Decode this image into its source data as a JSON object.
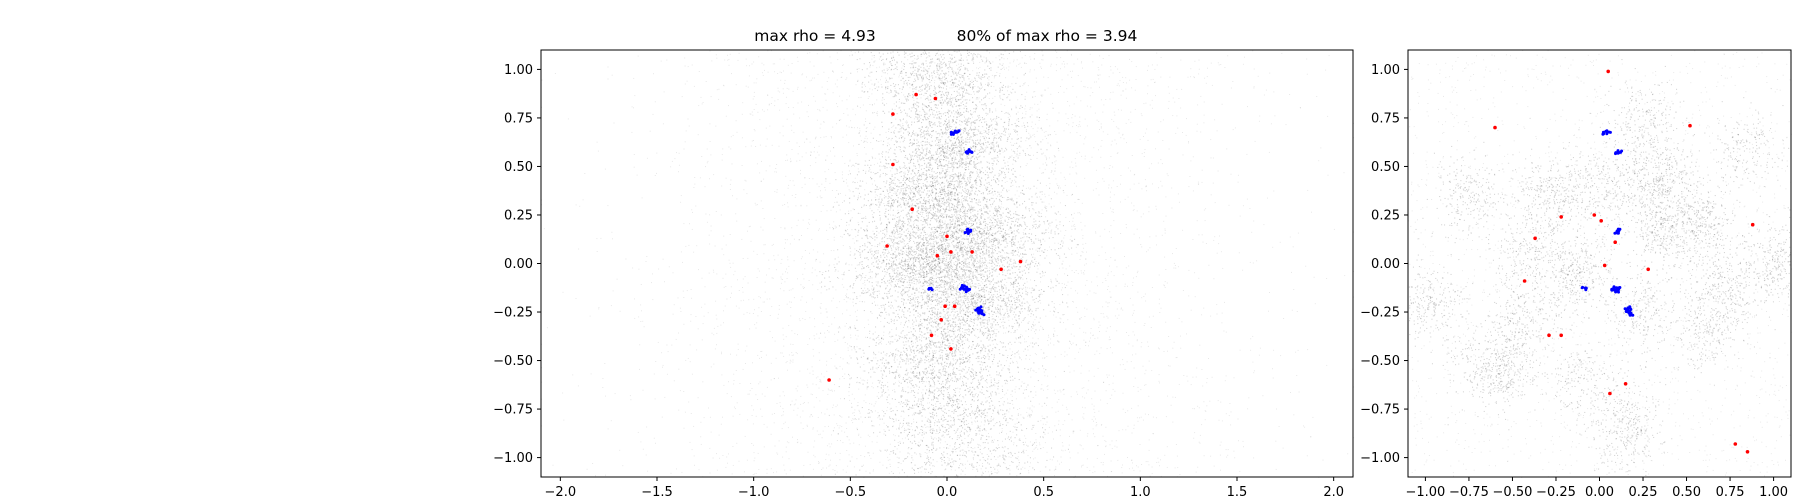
{
  "figure_title": {
    "left": "max rho = 4.93",
    "right": "80% of max rho = 3.94"
  },
  "chart_data": [
    {
      "type": "scatter",
      "title": "",
      "xlabel": "",
      "ylabel": "",
      "xlim": [
        -2.1,
        2.1
      ],
      "ylim": [
        -1.1,
        1.1
      ],
      "grid": false,
      "xticks": [
        -2.0,
        -1.5,
        -1.0,
        -0.5,
        0.0,
        0.5,
        1.0,
        1.5,
        2.0
      ],
      "xtick_labels": [
        "−2.0",
        "−1.5",
        "−1.0",
        "−0.5",
        "0.0",
        "0.5",
        "1.0",
        "1.5",
        "2.0"
      ],
      "yticks": [
        1.0,
        0.75,
        0.5,
        0.25,
        0.0,
        -0.25,
        -0.5,
        -0.75,
        -1.0
      ],
      "ytick_labels": [
        "1.00",
        "0.75",
        "0.50",
        "0.25",
        "0.00",
        "−0.25",
        "−0.50",
        "−0.75",
        "−1.00"
      ],
      "background_density": {
        "color": "#000000",
        "description_points": 0,
        "blobs": [
          {
            "x": -0.05,
            "y": 0.95,
            "sx": 0.18,
            "sy": 0.12,
            "w": 0.7
          },
          {
            "x": 0.05,
            "y": 0.62,
            "sx": 0.18,
            "sy": 0.12,
            "w": 1.0
          },
          {
            "x": -0.1,
            "y": 0.35,
            "sx": 0.18,
            "sy": 0.1,
            "w": 0.9
          },
          {
            "x": 0.1,
            "y": 0.15,
            "sx": 0.22,
            "sy": 0.12,
            "w": 1.2
          },
          {
            "x": -0.1,
            "y": 0.0,
            "sx": 0.2,
            "sy": 0.1,
            "w": 1.1
          },
          {
            "x": 0.1,
            "y": -0.2,
            "sx": 0.2,
            "sy": 0.1,
            "w": 1.0
          },
          {
            "x": -0.05,
            "y": -0.5,
            "sx": 0.2,
            "sy": 0.12,
            "w": 0.9
          },
          {
            "x": 0.05,
            "y": -0.85,
            "sx": 0.22,
            "sy": 0.15,
            "w": 0.7
          }
        ]
      },
      "series": [
        {
          "color": "#ff0000",
          "marker": "dot",
          "points": [
            [
              -0.16,
              0.87
            ],
            [
              -0.06,
              0.85
            ],
            [
              -0.28,
              0.77
            ],
            [
              -0.28,
              0.51
            ],
            [
              -0.18,
              0.28
            ],
            [
              -0.31,
              0.09
            ],
            [
              0.0,
              0.14
            ],
            [
              0.02,
              0.06
            ],
            [
              -0.05,
              0.04
            ],
            [
              0.13,
              0.06
            ],
            [
              0.38,
              0.01
            ],
            [
              0.28,
              -0.03
            ],
            [
              -0.01,
              -0.22
            ],
            [
              0.04,
              -0.22
            ],
            [
              -0.03,
              -0.29
            ],
            [
              -0.08,
              -0.37
            ],
            [
              0.02,
              -0.44
            ],
            [
              -0.61,
              -0.6
            ]
          ]
        },
        {
          "color": "#0000ff",
          "marker": "cluster",
          "points": [
            [
              0.03,
              0.67
            ],
            [
              0.05,
              0.68
            ],
            [
              0.1,
              0.57
            ],
            [
              0.12,
              0.58
            ],
            [
              0.1,
              0.16
            ],
            [
              0.11,
              0.17
            ],
            [
              0.08,
              -0.13
            ],
            [
              0.1,
              -0.14
            ],
            [
              0.11,
              -0.13
            ],
            [
              0.09,
              -0.12
            ],
            [
              -0.09,
              -0.13
            ],
            [
              0.16,
              -0.24
            ],
            [
              0.17,
              -0.25
            ],
            [
              0.18,
              -0.26
            ],
            [
              0.17,
              -0.23
            ]
          ]
        }
      ]
    },
    {
      "type": "scatter",
      "title": "",
      "xlabel": "",
      "ylabel": "",
      "xlim": [
        -1.1,
        1.1
      ],
      "ylim": [
        -1.1,
        1.1
      ],
      "grid": false,
      "xticks": [
        -1.0,
        -0.75,
        -0.5,
        -0.25,
        0.0,
        0.25,
        0.5,
        0.75,
        1.0
      ],
      "xtick_labels": [
        "−1.00",
        "−0.75",
        "−0.50",
        "−0.25",
        "0.00",
        "0.25",
        "0.50",
        "0.75",
        "1.00"
      ],
      "yticks": [
        1.0,
        0.75,
        0.5,
        0.25,
        0.0,
        -0.25,
        -0.5,
        -0.75,
        -1.0
      ],
      "ytick_labels": [
        "1.00",
        "0.75",
        "0.50",
        "0.25",
        "0.00",
        "−0.25",
        "−0.50",
        "−0.75",
        "−1.00"
      ],
      "background_density": {
        "color": "#000000",
        "blobs": [
          {
            "x": -0.6,
            "y": -0.55,
            "sx": 0.12,
            "sy": 0.1,
            "w": 1.0
          },
          {
            "x": -0.25,
            "y": 0.35,
            "sx": 0.12,
            "sy": 0.1,
            "w": 0.9
          },
          {
            "x": 0.35,
            "y": 0.45,
            "sx": 0.1,
            "sy": 0.1,
            "w": 0.9
          },
          {
            "x": 0.35,
            "y": 0.18,
            "sx": 0.1,
            "sy": 0.1,
            "w": 0.8
          },
          {
            "x": 0.72,
            "y": -0.12,
            "sx": 0.1,
            "sy": 0.12,
            "w": 0.9
          },
          {
            "x": 0.55,
            "y": 0.22,
            "sx": 0.1,
            "sy": 0.1,
            "w": 0.8
          },
          {
            "x": -0.15,
            "y": -0.05,
            "sx": 0.1,
            "sy": 0.1,
            "w": 0.9
          },
          {
            "x": 0.15,
            "y": -0.85,
            "sx": 0.1,
            "sy": 0.12,
            "w": 0.8
          },
          {
            "x": -1.0,
            "y": -0.2,
            "sx": 0.1,
            "sy": 0.1,
            "w": 0.8
          },
          {
            "x": -0.75,
            "y": 0.35,
            "sx": 0.1,
            "sy": 0.1,
            "w": 0.6
          },
          {
            "x": 0.05,
            "y": 0.4,
            "sx": 0.12,
            "sy": 0.12,
            "w": 0.7
          },
          {
            "x": -0.4,
            "y": 0.05,
            "sx": 0.1,
            "sy": 0.1,
            "w": 0.6
          },
          {
            "x": 0.6,
            "y": -0.35,
            "sx": 0.1,
            "sy": 0.1,
            "w": 0.6
          },
          {
            "x": 0.25,
            "y": 0.75,
            "sx": 0.1,
            "sy": 0.1,
            "w": 0.6
          },
          {
            "x": -0.45,
            "y": -0.3,
            "sx": 0.1,
            "sy": 0.1,
            "w": 0.6
          },
          {
            "x": 1.0,
            "y": 0.0,
            "sx": 0.08,
            "sy": 0.1,
            "w": 0.6
          },
          {
            "x": 0.25,
            "y": -0.25,
            "sx": 0.1,
            "sy": 0.1,
            "w": 0.7
          },
          {
            "x": -0.1,
            "y": -0.6,
            "sx": 0.1,
            "sy": 0.1,
            "w": 0.6
          },
          {
            "x": 0.85,
            "y": 0.6,
            "sx": 0.1,
            "sy": 0.1,
            "w": 0.5
          }
        ]
      },
      "series": [
        {
          "color": "#ff0000",
          "marker": "dot",
          "points": [
            [
              0.05,
              0.99
            ],
            [
              -0.6,
              0.7
            ],
            [
              0.52,
              0.71
            ],
            [
              -0.22,
              0.24
            ],
            [
              -0.03,
              0.25
            ],
            [
              0.01,
              0.22
            ],
            [
              -0.37,
              0.13
            ],
            [
              0.09,
              0.11
            ],
            [
              0.88,
              0.2
            ],
            [
              0.03,
              -0.01
            ],
            [
              0.28,
              -0.03
            ],
            [
              -0.43,
              -0.09
            ],
            [
              -0.29,
              -0.37
            ],
            [
              -0.22,
              -0.37
            ],
            [
              0.15,
              -0.62
            ],
            [
              0.06,
              -0.67
            ],
            [
              0.78,
              -0.93
            ],
            [
              0.85,
              -0.97
            ]
          ]
        },
        {
          "color": "#0000ff",
          "marker": "cluster",
          "points": [
            [
              0.03,
              0.67
            ],
            [
              0.05,
              0.68
            ],
            [
              0.1,
              0.57
            ],
            [
              0.12,
              0.58
            ],
            [
              0.1,
              0.16
            ],
            [
              0.11,
              0.17
            ],
            [
              0.08,
              -0.13
            ],
            [
              0.1,
              -0.14
            ],
            [
              0.11,
              -0.13
            ],
            [
              0.09,
              -0.12
            ],
            [
              -0.09,
              -0.13
            ],
            [
              0.16,
              -0.24
            ],
            [
              0.17,
              -0.25
            ],
            [
              0.18,
              -0.26
            ],
            [
              0.17,
              -0.23
            ]
          ]
        }
      ]
    }
  ]
}
